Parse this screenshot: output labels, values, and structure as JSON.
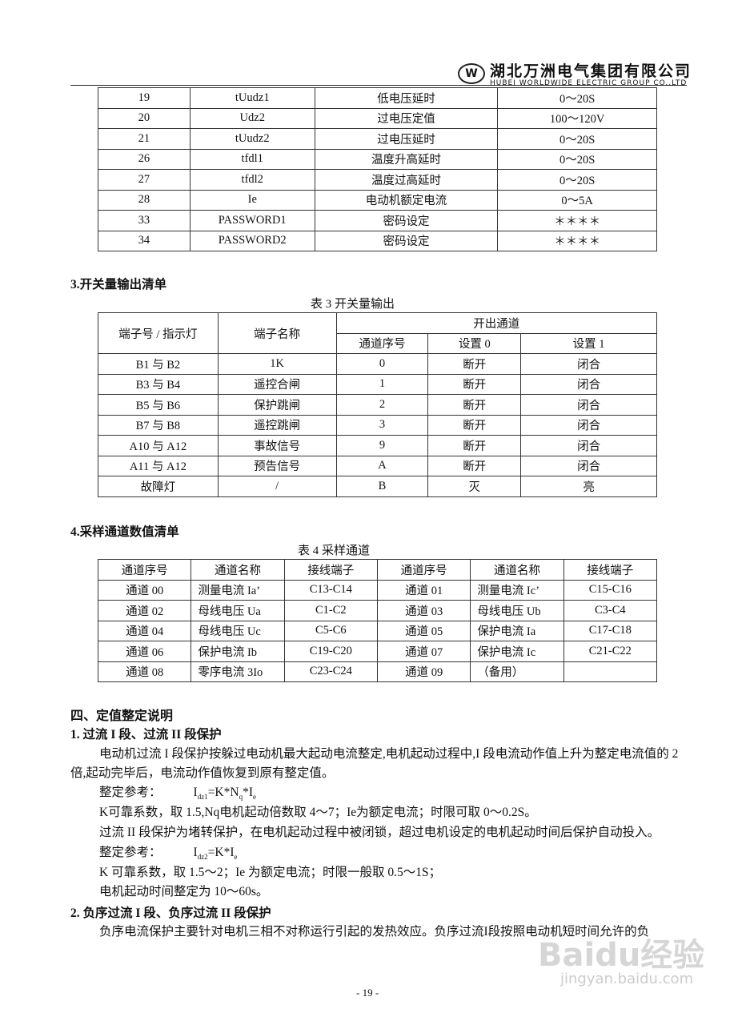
{
  "header": {
    "logo_text": "W",
    "logo_sub": "Worldwide",
    "company_cn": "湖北万洲电气集团有限公司",
    "company_en": "HUBEI WORLDWIDE ELECTRIC GROUP CO.,LTD"
  },
  "table2_rows": [
    [
      "19",
      "tUudz1",
      "低电压延时",
      "0～20S"
    ],
    [
      "20",
      "Udz2",
      "过电压定值",
      "100～120V"
    ],
    [
      "21",
      "tUudz2",
      "过电压延时",
      "0～20S"
    ],
    [
      "26",
      "tfdl1",
      "温度升高延时",
      "0～20S"
    ],
    [
      "27",
      "tfdl2",
      "温度过高延时",
      "0～20S"
    ],
    [
      "28",
      "Ie",
      "电动机额定电流",
      "0～5A"
    ],
    [
      "33",
      "PASSWORD1",
      "密码设定",
      "＊＊＊＊"
    ],
    [
      "34",
      "PASSWORD2",
      "密码设定",
      "＊＊＊＊"
    ]
  ],
  "section3": {
    "heading": "3.开关量输出清单",
    "caption": "表 3  开关量输出",
    "headers": {
      "terminal": "端子号 / 指示灯",
      "name": "端子名称",
      "group": "开出通道",
      "channel": "通道序号",
      "set0": "设置 0",
      "set1": "设置 1"
    },
    "rows": [
      [
        "B1 与 B2",
        "1K",
        "0",
        "断开",
        "闭合"
      ],
      [
        "B3 与 B4",
        "遥控合闸",
        "1",
        "断开",
        "闭合"
      ],
      [
        "B5 与 B6",
        "保护跳闸",
        "2",
        "断开",
        "闭合"
      ],
      [
        "B7 与 B8",
        "遥控跳闸",
        "3",
        "断开",
        "闭合"
      ],
      [
        "A10 与 A12",
        "事故信号",
        "9",
        "断开",
        "闭合"
      ],
      [
        "A11 与 A12",
        "预告信号",
        "A",
        "断开",
        "闭合"
      ],
      [
        "故障灯",
        "/",
        "B",
        "灭",
        "亮"
      ]
    ]
  },
  "section4": {
    "heading": "4.采样通道数值清单",
    "caption": "表 4  采样通道",
    "headers": [
      "通道序号",
      "通道名称",
      "接线端子",
      "通道序号",
      "通道名称",
      "接线端子"
    ],
    "rows": [
      [
        "通道 00",
        "测量电流 Ia’",
        "C13-C14",
        "通道 01",
        "测量电流 Ic’",
        "C15-C16"
      ],
      [
        "通道 02",
        "母线电压 Ua",
        "C1-C2",
        "通道 03",
        "母线电压 Ub",
        "C3-C4"
      ],
      [
        "通道 04",
        "母线电压 Uc",
        "C5-C6",
        "通道 05",
        "保护电流 Ia",
        "C17-C18"
      ],
      [
        "通道 06",
        "保护电流 Ib",
        "C19-C20",
        "通道 07",
        "保护电流 Ic",
        "C21-C22"
      ],
      [
        "通道 08",
        "零序电流 3Io",
        "C23-C24",
        "通道 09",
        "（备用）",
        ""
      ]
    ]
  },
  "text": {
    "chapter": "四、定值整定说明",
    "s1": "1. 过流 I 段、过流 II 段保护",
    "p1": "电动机过流 I 段保护按躲过电动机最大起动电流整定,电机起动过程中,I 段电流动作值上升为整定电流值的 2 倍,起动完毕后，电流动作值恢复到原有整定值。",
    "ref1_label": "整定参考：",
    "ref1_formula": "Idz1=K*Nq*Ie",
    "l1": "K可靠系数，取 1.5,Nq电机起动倍数取 4～7；Ie为额定电流；时限可取 0～0.2S。",
    "l2": "过流 II 段保护为堵转保护，在电机起动过程中被闭锁，超过电机设定的电机起动时间后保护自动投入。",
    "ref2_label": "整定参考：",
    "ref2_formula": "Idz2=K*Ie",
    "l3": "K 可靠系数，取 1.5～2；Ie 为额定电流；时限一般取 0.5～1S；",
    "l4": "电机起动时间整定为 10～60s。",
    "s2": "2. 负序过流 I 段、负序过流 II 段保护",
    "p2": "负序电流保护主要针对电机三相不对称运行引起的发热效应。负序过流I段按照电动机短时间允许的负"
  },
  "footer": {
    "page": "-  19  -"
  },
  "watermark": {
    "brand": "Baidu经验",
    "url": "jingyan.baidu.com"
  }
}
